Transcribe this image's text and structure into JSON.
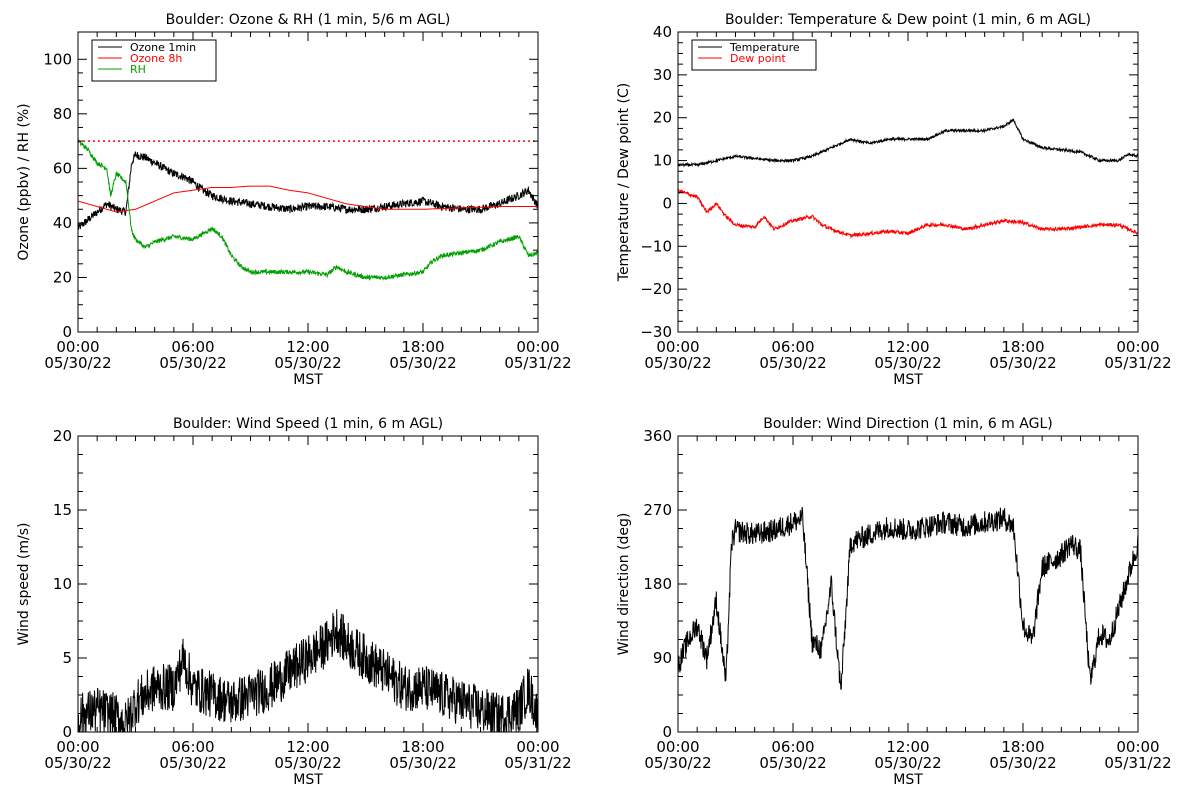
{
  "chart_data": [
    {
      "type": "line",
      "title": "Boulder: Ozone & RH (1 min, 5/6 m AGL)",
      "ylabel": "Ozone (ppbv) / RH (%)",
      "xlabel": "MST",
      "xlim_hours": [
        0,
        24
      ],
      "ylim": [
        0,
        110
      ],
      "yticks": [
        "0",
        "20",
        "40",
        "60",
        "80",
        "100"
      ],
      "ytick_values": [
        0,
        20,
        40,
        60,
        80,
        100
      ],
      "xticks": [
        {
          "time": "00:00",
          "date": "05/30/22"
        },
        {
          "time": "06:00",
          "date": "05/30/22"
        },
        {
          "time": "12:00",
          "date": "05/30/22"
        },
        {
          "time": "18:00",
          "date": "05/30/22"
        },
        {
          "time": "00:00",
          "date": "05/31/22"
        }
      ],
      "legend_position": "top-left",
      "reference_line": {
        "y": 70,
        "color": "#ff0000",
        "style": "dotted"
      },
      "series": [
        {
          "name": "Ozone 1min",
          "color": "#000000",
          "noise": 1.5,
          "points": [
            [
              0,
              38
            ],
            [
              0.5,
              41
            ],
            [
              1,
              44
            ],
            [
              1.5,
              47
            ],
            [
              2,
              45
            ],
            [
              2.5,
              44
            ],
            [
              2.8,
              62
            ],
            [
              3,
              65
            ],
            [
              3.5,
              64
            ],
            [
              4,
              62
            ],
            [
              4.5,
              60
            ],
            [
              5,
              58
            ],
            [
              5.5,
              57
            ],
            [
              6,
              55
            ],
            [
              6.5,
              52
            ],
            [
              7,
              50
            ],
            [
              8,
              48
            ],
            [
              9,
              47
            ],
            [
              10,
              46
            ],
            [
              11,
              45
            ],
            [
              12,
              46
            ],
            [
              13,
              46
            ],
            [
              14,
              45
            ],
            [
              15,
              45
            ],
            [
              16,
              46
            ],
            [
              17,
              47
            ],
            [
              18,
              48
            ],
            [
              19,
              46
            ],
            [
              20,
              45
            ],
            [
              21,
              45
            ],
            [
              22,
              47
            ],
            [
              23,
              50
            ],
            [
              23.5,
              52
            ],
            [
              24,
              46
            ]
          ]
        },
        {
          "name": "Ozone 8h",
          "color": "#ff0000",
          "noise": 0,
          "points": [
            [
              0,
              48
            ],
            [
              1,
              46
            ],
            [
              2,
              44
            ],
            [
              3,
              45
            ],
            [
              4,
              48
            ],
            [
              5,
              51
            ],
            [
              6,
              52
            ],
            [
              7,
              53
            ],
            [
              8,
              53
            ],
            [
              9,
              53.5
            ],
            [
              10,
              53.5
            ],
            [
              11,
              52
            ],
            [
              12,
              51
            ],
            [
              13,
              49
            ],
            [
              14,
              47
            ],
            [
              15,
              46
            ],
            [
              16,
              45
            ],
            [
              18,
              45
            ],
            [
              20,
              45.5
            ],
            [
              22,
              46
            ],
            [
              24,
              46
            ]
          ]
        },
        {
          "name": "RH",
          "color": "#00a000",
          "noise": 0.8,
          "points": [
            [
              0,
              70
            ],
            [
              0.5,
              67
            ],
            [
              1,
              62
            ],
            [
              1.5,
              60
            ],
            [
              1.7,
              50
            ],
            [
              2,
              58
            ],
            [
              2.5,
              55
            ],
            [
              2.8,
              37
            ],
            [
              3,
              34
            ],
            [
              3.5,
              31
            ],
            [
              4,
              33
            ],
            [
              5,
              35
            ],
            [
              6,
              34
            ],
            [
              6.5,
              36
            ],
            [
              7,
              38
            ],
            [
              7.5,
              35
            ],
            [
              8,
              28
            ],
            [
              8.5,
              24
            ],
            [
              9,
              22
            ],
            [
              10,
              22
            ],
            [
              11,
              22
            ],
            [
              12,
              22
            ],
            [
              13,
              21
            ],
            [
              13.5,
              24
            ],
            [
              14,
              22
            ],
            [
              15,
              20
            ],
            [
              16,
              20
            ],
            [
              17,
              21
            ],
            [
              18,
              22
            ],
            [
              18.5,
              26
            ],
            [
              19,
              28
            ],
            [
              20,
              29
            ],
            [
              21,
              30
            ],
            [
              22,
              33
            ],
            [
              23,
              35
            ],
            [
              23.5,
              28
            ],
            [
              24,
              29
            ]
          ]
        }
      ]
    },
    {
      "type": "line",
      "title": "Boulder: Temperature & Dew point (1 min, 6 m AGL)",
      "ylabel": "Temperature / Dew point (C)",
      "xlabel": "MST",
      "xlim_hours": [
        0,
        24
      ],
      "ylim": [
        -30,
        40
      ],
      "yticks": [
        "−30",
        "−20",
        "−10",
        "0",
        "10",
        "20",
        "30",
        "40"
      ],
      "ytick_values": [
        -30,
        -20,
        -10,
        0,
        10,
        20,
        30,
        40
      ],
      "xticks": [
        {
          "time": "00:00",
          "date": "05/30/22"
        },
        {
          "time": "06:00",
          "date": "05/30/22"
        },
        {
          "time": "12:00",
          "date": "05/30/22"
        },
        {
          "time": "18:00",
          "date": "05/30/22"
        },
        {
          "time": "00:00",
          "date": "05/31/22"
        }
      ],
      "legend_position": "top-left",
      "series": [
        {
          "name": "Temperature",
          "color": "#000000",
          "noise": 0.3,
          "points": [
            [
              0,
              9
            ],
            [
              1,
              9
            ],
            [
              2,
              10
            ],
            [
              3,
              11
            ],
            [
              4,
              10.5
            ],
            [
              5,
              10
            ],
            [
              6,
              10
            ],
            [
              7,
              11
            ],
            [
              8,
              13
            ],
            [
              9,
              15
            ],
            [
              10,
              14
            ],
            [
              11,
              15
            ],
            [
              12,
              15
            ],
            [
              13,
              15
            ],
            [
              14,
              17
            ],
            [
              15,
              17
            ],
            [
              16,
              17
            ],
            [
              17,
              18
            ],
            [
              17.5,
              19.5
            ],
            [
              18,
              15
            ],
            [
              19,
              13
            ],
            [
              20,
              12.5
            ],
            [
              21,
              12
            ],
            [
              22,
              10
            ],
            [
              23,
              10
            ],
            [
              23.5,
              11.5
            ],
            [
              24,
              11
            ]
          ]
        },
        {
          "name": "Dew point",
          "color": "#ff0000",
          "noise": 0.4,
          "points": [
            [
              0,
              3
            ],
            [
              1,
              1.5
            ],
            [
              1.5,
              -2
            ],
            [
              2,
              0
            ],
            [
              2.5,
              -3
            ],
            [
              3,
              -5
            ],
            [
              4,
              -5.5
            ],
            [
              4.5,
              -3
            ],
            [
              5,
              -6
            ],
            [
              6,
              -4
            ],
            [
              6.5,
              -3.5
            ],
            [
              7,
              -3
            ],
            [
              7.5,
              -5
            ],
            [
              8,
              -6
            ],
            [
              9,
              -7.5
            ],
            [
              10,
              -7
            ],
            [
              11,
              -6.5
            ],
            [
              12,
              -7
            ],
            [
              13,
              -5
            ],
            [
              14,
              -5
            ],
            [
              15,
              -6
            ],
            [
              16,
              -5
            ],
            [
              17,
              -4
            ],
            [
              18,
              -4.5
            ],
            [
              19,
              -6
            ],
            [
              20,
              -6
            ],
            [
              21,
              -5.5
            ],
            [
              22,
              -5
            ],
            [
              23,
              -5
            ],
            [
              24,
              -7
            ]
          ]
        }
      ]
    },
    {
      "type": "line",
      "title": "Boulder: Wind Speed (1 min, 6 m AGL)",
      "ylabel": "Wind speed (m/s)",
      "xlabel": "MST",
      "xlim_hours": [
        0,
        24
      ],
      "ylim": [
        0,
        20
      ],
      "yticks": [
        "0",
        "5",
        "10",
        "15",
        "20"
      ],
      "ytick_values": [
        0,
        5,
        10,
        15,
        20
      ],
      "xticks": [
        {
          "time": "00:00",
          "date": "05/30/22"
        },
        {
          "time": "06:00",
          "date": "05/30/22"
        },
        {
          "time": "12:00",
          "date": "05/30/22"
        },
        {
          "time": "18:00",
          "date": "05/30/22"
        },
        {
          "time": "00:00",
          "date": "05/31/22"
        }
      ],
      "series": [
        {
          "name": "",
          "color": "#000000",
          "noise": 1.6,
          "floor": 0,
          "points": [
            [
              0,
              1
            ],
            [
              1,
              1.5
            ],
            [
              2,
              1
            ],
            [
              2.5,
              0.5
            ],
            [
              3,
              2
            ],
            [
              4,
              3
            ],
            [
              5,
              3
            ],
            [
              5.5,
              5
            ],
            [
              6,
              3
            ],
            [
              7,
              2.5
            ],
            [
              8,
              2
            ],
            [
              9,
              2.5
            ],
            [
              10,
              3
            ],
            [
              11,
              4
            ],
            [
              12,
              5
            ],
            [
              13,
              6
            ],
            [
              13.5,
              7
            ],
            [
              14,
              6
            ],
            [
              15,
              5
            ],
            [
              16,
              4
            ],
            [
              17,
              3
            ],
            [
              18,
              3
            ],
            [
              19,
              2.5
            ],
            [
              20,
              2
            ],
            [
              21,
              1.5
            ],
            [
              22,
              1
            ],
            [
              23,
              1.5
            ],
            [
              23.5,
              3
            ],
            [
              24,
              1
            ]
          ]
        }
      ]
    },
    {
      "type": "line",
      "title": "Boulder: Wind Direction (1 min, 6 m AGL)",
      "ylabel": "Wind direction (deg)",
      "xlabel": "MST",
      "xlim_hours": [
        0,
        24
      ],
      "ylim": [
        0,
        360
      ],
      "yticks": [
        "0",
        "90",
        "180",
        "270",
        "360"
      ],
      "ytick_values": [
        0,
        90,
        180,
        270,
        360
      ],
      "xticks": [
        {
          "time": "00:00",
          "date": "05/30/22"
        },
        {
          "time": "06:00",
          "date": "05/30/22"
        },
        {
          "time": "12:00",
          "date": "05/30/22"
        },
        {
          "time": "18:00",
          "date": "05/30/22"
        },
        {
          "time": "00:00",
          "date": "05/31/22"
        }
      ],
      "series": [
        {
          "name": "",
          "color": "#000000",
          "noise": 14,
          "floor": 0,
          "ceil": 360,
          "points": [
            [
              0,
              80
            ],
            [
              0.5,
              110
            ],
            [
              1,
              130
            ],
            [
              1.5,
              90
            ],
            [
              2,
              160
            ],
            [
              2.5,
              60
            ],
            [
              2.8,
              230
            ],
            [
              3,
              245
            ],
            [
              4,
              240
            ],
            [
              5,
              245
            ],
            [
              6,
              255
            ],
            [
              6.5,
              260
            ],
            [
              7,
              110
            ],
            [
              7.5,
              100
            ],
            [
              8,
              180
            ],
            [
              8.5,
              50
            ],
            [
              9,
              230
            ],
            [
              10,
              240
            ],
            [
              11,
              250
            ],
            [
              12,
              245
            ],
            [
              13,
              250
            ],
            [
              14,
              255
            ],
            [
              15,
              250
            ],
            [
              16,
              255
            ],
            [
              17,
              260
            ],
            [
              17.5,
              250
            ],
            [
              18,
              130
            ],
            [
              18.5,
              110
            ],
            [
              19,
              200
            ],
            [
              20,
              215
            ],
            [
              20.5,
              230
            ],
            [
              21,
              220
            ],
            [
              21.5,
              60
            ],
            [
              22,
              120
            ],
            [
              22.5,
              110
            ],
            [
              23,
              150
            ],
            [
              24,
              230
            ]
          ]
        }
      ]
    }
  ]
}
